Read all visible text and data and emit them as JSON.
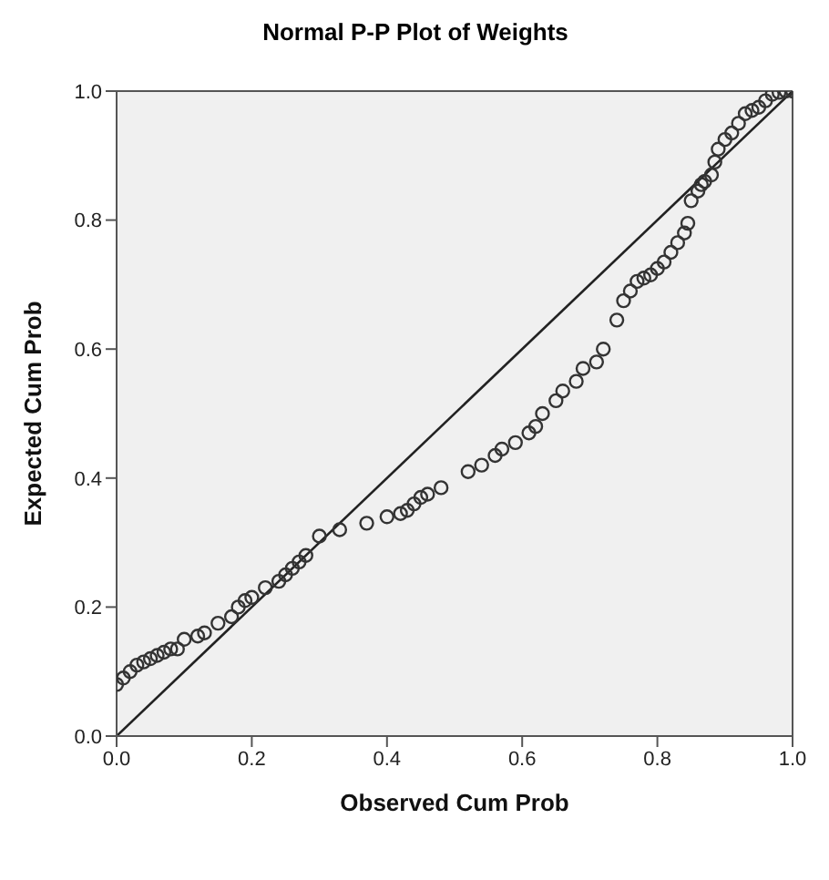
{
  "chart_data": {
    "type": "scatter",
    "title": "Normal P-P Plot of Weights",
    "xlabel": "Observed Cum Prob",
    "ylabel": "Expected Cum Prob",
    "xlim": [
      0,
      1
    ],
    "ylim": [
      0,
      1
    ],
    "xticks": [
      {
        "value": 0,
        "label": "0.0"
      },
      {
        "value": 0.2,
        "label": "0.2"
      },
      {
        "value": 0.4,
        "label": "0.4"
      },
      {
        "value": 0.6,
        "label": "0.6"
      },
      {
        "value": 0.8,
        "label": "0.8"
      },
      {
        "value": 1,
        "label": "1.0"
      }
    ],
    "yticks": [
      {
        "value": 0,
        "label": "0.0"
      },
      {
        "value": 0.2,
        "label": "0.2"
      },
      {
        "value": 0.4,
        "label": "0.4"
      },
      {
        "value": 0.6,
        "label": "0.6"
      },
      {
        "value": 0.8,
        "label": "0.8"
      },
      {
        "value": 1,
        "label": "1.0"
      }
    ],
    "grid": false,
    "series": [
      {
        "marker": "circle",
        "color": "#333333",
        "x": [
          0,
          0.01,
          0.02,
          0.03,
          0.04,
          0.05,
          0.06,
          0.07,
          0.08,
          0.09,
          0.1,
          0.12,
          0.13,
          0.15,
          0.17,
          0.18,
          0.19,
          0.2,
          0.22,
          0.24,
          0.25,
          0.26,
          0.27,
          0.28,
          0.3,
          0.33,
          0.37,
          0.4,
          0.42,
          0.43,
          0.44,
          0.45,
          0.46,
          0.48,
          0.52,
          0.54,
          0.56,
          0.57,
          0.59,
          0.61,
          0.62,
          0.63,
          0.65,
          0.66,
          0.68,
          0.69,
          0.71,
          0.72,
          0.74,
          0.75,
          0.76,
          0.77,
          0.78,
          0.79,
          0.8,
          0.81,
          0.82,
          0.83,
          0.84,
          0.845,
          0.85,
          0.86,
          0.865,
          0.87,
          0.88,
          0.885,
          0.89,
          0.9,
          0.91,
          0.92,
          0.93,
          0.94,
          0.95,
          0.96,
          0.97,
          0.98,
          0.99,
          1
        ],
        "values": [
          0.08,
          0.09,
          0.1,
          0.11,
          0.115,
          0.12,
          0.125,
          0.13,
          0.135,
          0.135,
          0.15,
          0.155,
          0.16,
          0.175,
          0.185,
          0.2,
          0.21,
          0.215,
          0.23,
          0.24,
          0.25,
          0.26,
          0.27,
          0.28,
          0.31,
          0.32,
          0.33,
          0.34,
          0.345,
          0.35,
          0.36,
          0.37,
          0.375,
          0.385,
          0.41,
          0.42,
          0.435,
          0.445,
          0.455,
          0.47,
          0.48,
          0.5,
          0.52,
          0.535,
          0.55,
          0.57,
          0.58,
          0.6,
          0.645,
          0.675,
          0.69,
          0.705,
          0.71,
          0.715,
          0.725,
          0.735,
          0.75,
          0.765,
          0.78,
          0.795,
          0.83,
          0.845,
          0.855,
          0.86,
          0.87,
          0.89,
          0.91,
          0.925,
          0.935,
          0.95,
          0.965,
          0.97,
          0.975,
          0.985,
          0.995,
          0.998,
          1,
          1
        ]
      },
      {
        "type": "line",
        "marker": "none",
        "color": "#222222",
        "x": [
          0,
          1
        ],
        "values": [
          0,
          1
        ]
      }
    ]
  }
}
